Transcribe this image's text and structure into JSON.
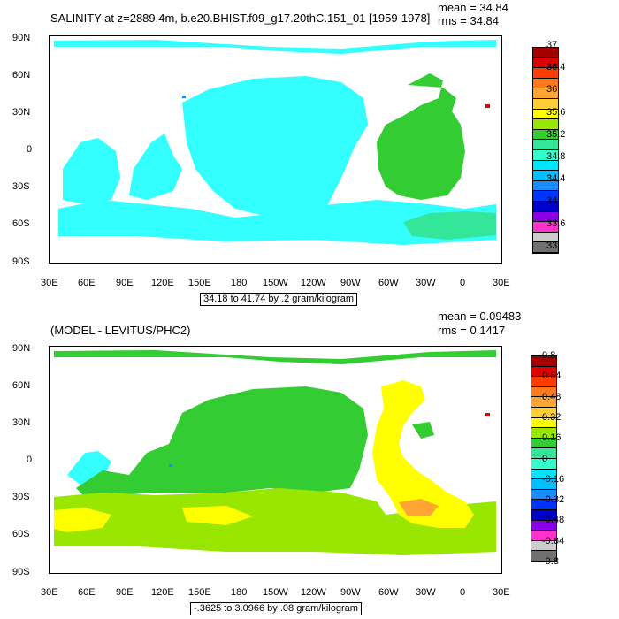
{
  "panel1": {
    "title": "SALINITY at z=2889.4m, b.e20.BHIST.f09_g17.20thC.151_01 [1959-1978]",
    "mean_text": "mean = 34.84",
    "rms_text": "rms = 34.84",
    "range_text": "34.18 to 41.74 by .2 gram/kilogram",
    "legend": {
      "colors": [
        "#a50000",
        "#e00000",
        "#ff3d00",
        "#ff7a1a",
        "#ffa533",
        "#ffcf33",
        "#ffff00",
        "#99e600",
        "#33cc33",
        "#33e699",
        "#33ffcc",
        "#00e6ff",
        "#00bfff",
        "#1a8cff",
        "#0033ff",
        "#0000cc",
        "#8a00e6",
        "#ff33cc",
        "#cccccc",
        "#707070"
      ],
      "labels": [
        "37",
        "36.4",
        "36",
        "35.6",
        "35.2",
        "34.8",
        "34.4",
        "34",
        "33.6",
        "33"
      ]
    }
  },
  "panel2": {
    "title": "(MODEL - LEVITUS/PHC2)",
    "mean_text": "mean = 0.09483",
    "rms_text": "rms = 0.1417",
    "range_text": "-.3625 to 3.0966 by .08 gram/kilogram",
    "legend": {
      "colors": [
        "#a50000",
        "#e00000",
        "#ff3d00",
        "#ff7a1a",
        "#ffa533",
        "#ffcf33",
        "#ffff00",
        "#99e600",
        "#33cc33",
        "#33e699",
        "#33ffcc",
        "#00e6ff",
        "#00bfff",
        "#1a8cff",
        "#0033ff",
        "#0000cc",
        "#8a00e6",
        "#ff33cc",
        "#cccccc",
        "#707070"
      ],
      "labels": [
        "0.8",
        "0.64",
        "0.48",
        "0.32",
        "0.16",
        "0",
        "-0.16",
        "-0.32",
        "-0.48",
        "-0.64",
        "-0.8"
      ]
    }
  },
  "axes": {
    "lat_labels": [
      "90N",
      "60N",
      "30N",
      "0",
      "30S",
      "60S",
      "90S"
    ],
    "lon_labels": [
      "30E",
      "60E",
      "90E",
      "120E",
      "150E",
      "180",
      "150W",
      "120W",
      "90W",
      "60W",
      "30W",
      "0",
      "30E"
    ]
  },
  "colors": {
    "field_cyan": "#33ffff",
    "field_green": "#33cc33",
    "field_aqua": "#33e699",
    "field_lime": "#99e600",
    "field_yellow": "#ffff00",
    "field_orange": "#ffa533"
  }
}
